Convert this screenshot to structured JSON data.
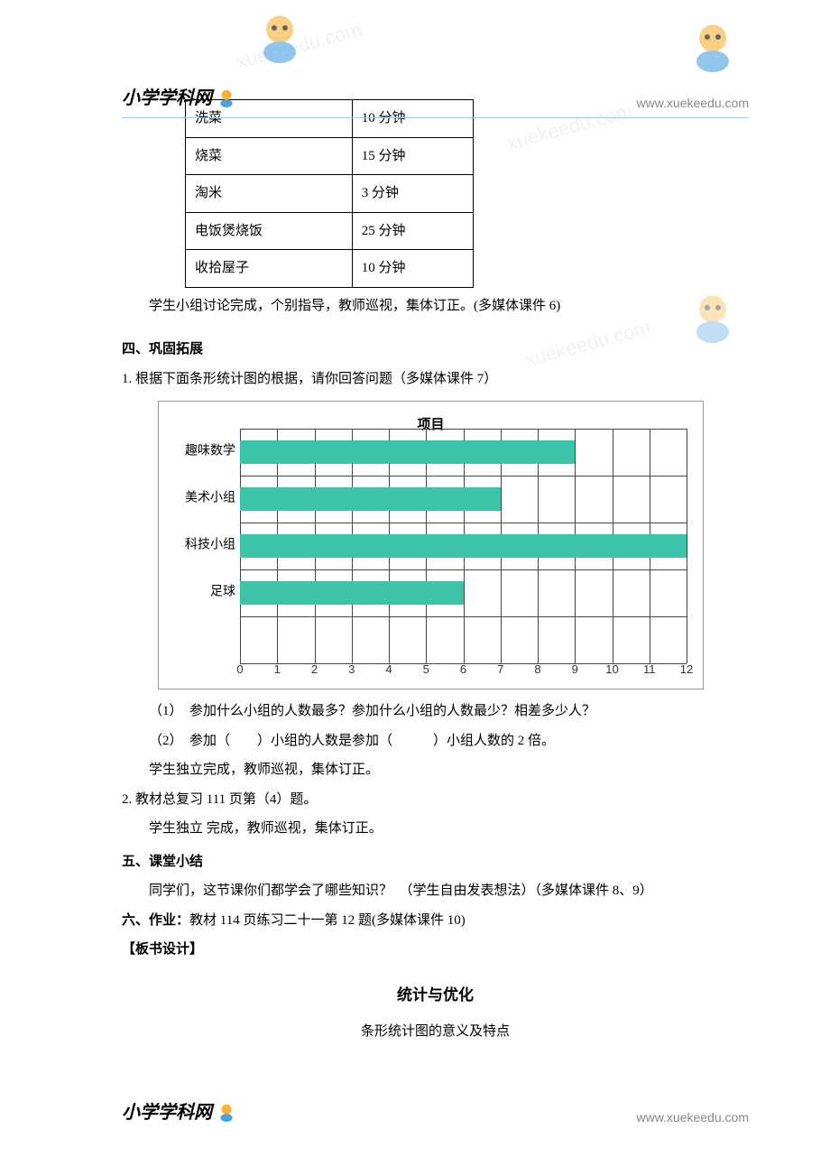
{
  "header": {
    "logo": "小学学科网",
    "url": "www.xuekeedu.com"
  },
  "watermarks": [
    "xuekeedu.com",
    "xuekeedu.com",
    "xuekeedu.com"
  ],
  "table": {
    "rows": [
      {
        "task": "洗菜",
        "time": "10 分钟"
      },
      {
        "task": "烧菜",
        "time": "15 分钟"
      },
      {
        "task": "淘米",
        "time": "3 分钟"
      },
      {
        "task": "电饭煲烧饭",
        "time": "25 分钟"
      },
      {
        "task": "收拾屋子",
        "time": "10 分钟"
      }
    ]
  },
  "p_after_table": "学生小组讨论完成，个别指导，教师巡视，集体订正。(多媒体课件 6)",
  "sec4_title": "四、巩固拓展",
  "sec4_item1": "1. 根据下面条形统计图的根据，请你回答问题（多媒体课件 7）",
  "chart": {
    "title": "项目",
    "xmax": 12,
    "xtick_step": 1,
    "track_count": 5,
    "background_color": "#ffffff",
    "bar_color": "#3cc4a8",
    "grid_color": "#444444",
    "series": [
      {
        "label": "趣味数学",
        "value": 9
      },
      {
        "label": "美术小组",
        "value": 7
      },
      {
        "label": "科技小组",
        "value": 12
      },
      {
        "label": "足球",
        "value": 6
      }
    ],
    "xticks": [
      0,
      1,
      2,
      3,
      4,
      5,
      6,
      7,
      8,
      9,
      10,
      11,
      12
    ]
  },
  "q1": "（1）　参加什么小组的人数最多？参加什么小组的人数最少？相差多少人？",
  "q2": "（2）　参加（　　）小组的人数是参加（　　　）小组人数的 2 倍。",
  "q_followup": "学生独立完成，教师巡视，集体订正。",
  "sec4_item2": "2. 教材总复习 111 页第（4）题。",
  "sec4_item2_follow": "学生独立 完成，教师巡视，集体订正。",
  "sec5_title": "五、课堂小结",
  "sec5_body": "同学们，这节课你们都学会了哪些知识？　（学生自由发表想法）（多媒体课件 8、9）",
  "sec6_title_prefix": "六、作业：",
  "sec6_body": "教材 114 页练习二十一第 12 题(多媒体课件 10)",
  "board_title": "【板书设计】",
  "board_center1": "统计与优化",
  "board_center2": "条形统计图的意义及特点"
}
